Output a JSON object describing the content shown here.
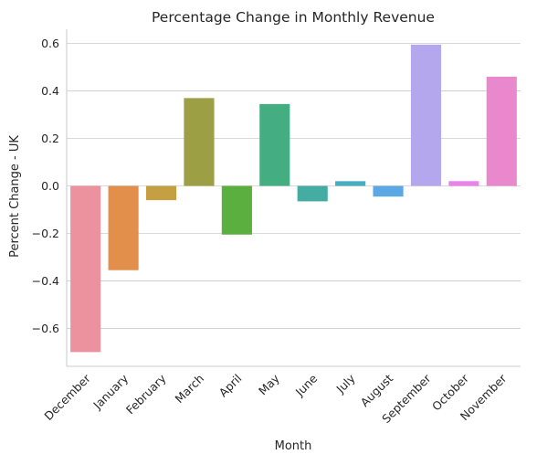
{
  "chart_data": {
    "type": "bar",
    "title": "Percentage Change in Monthly Revenue",
    "xlabel": "Month",
    "ylabel": "Percent Change - UK",
    "categories": [
      "December",
      "January",
      "February",
      "March",
      "April",
      "May",
      "June",
      "July",
      "August",
      "September",
      "October",
      "November"
    ],
    "values": [
      -0.7,
      -0.355,
      -0.06,
      0.37,
      -0.205,
      0.345,
      -0.065,
      0.02,
      -0.045,
      0.595,
      0.02,
      0.46
    ],
    "colors": [
      "#ec929f",
      "#e28f4c",
      "#c4a043",
      "#9c9f43",
      "#5aaf3f",
      "#44ad82",
      "#45aca4",
      "#46aec0",
      "#5ba8e4",
      "#b4a7ee",
      "#ea82ea",
      "#ea88cd"
    ],
    "ylim": [
      -0.76,
      0.66
    ],
    "yticks": [
      -0.6,
      -0.4,
      -0.2,
      0.0,
      0.2,
      0.4,
      0.6
    ],
    "ytick_labels": [
      "−0.6",
      "−0.4",
      "−0.2",
      "0.0",
      "0.2",
      "0.4",
      "0.6"
    ],
    "grid": "horizontal",
    "legend": "none"
  }
}
